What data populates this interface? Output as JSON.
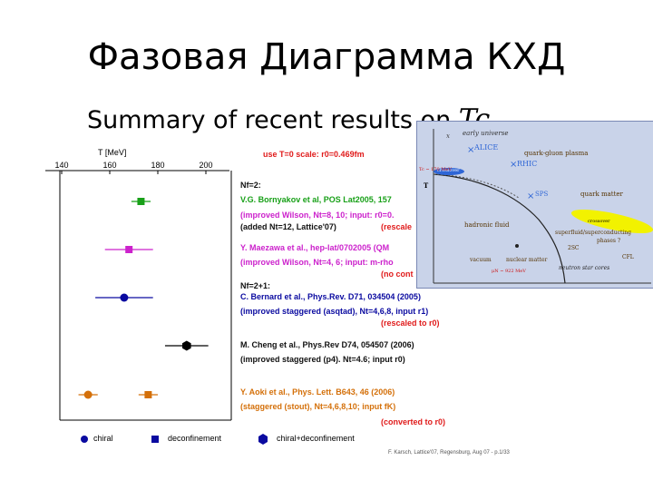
{
  "slide": {
    "title": "Фазовая Диаграмма КХД",
    "subtitle": "Summary of recent results on ",
    "subtitle_symbol": "Tc"
  },
  "chart_data": {
    "type": "scatter",
    "xlabel": "T [MeV]",
    "x_ticks": [
      140,
      160,
      180,
      200
    ],
    "xlim": [
      140,
      200
    ],
    "scale_note": "use T=0 scale: r0=0.469fm",
    "entries": [
      {
        "group": "Nf=2:",
        "lines": [
          {
            "text": "V.G. Bornyakov et al, POS Lat2005, 157",
            "color": "green"
          },
          {
            "text": "(improved Wilson, Nt=8, 10; input: r0=0.",
            "color": "magenta"
          },
          {
            "text": "(added Nt=12, Lattice'07)",
            "color": "black"
          },
          {
            "text": "(rescale",
            "color": "red"
          }
        ]
      },
      {
        "lines": [
          {
            "text": "Y. Maezawa et al., hep-lat/0702005 (QM",
            "color": "magenta"
          },
          {
            "text": "(improved Wilson, Nt=4, 6; input: m-rho",
            "color": "magenta"
          },
          {
            "text": "(no cont",
            "color": "red"
          }
        ]
      },
      {
        "group": "Nf=2+1:",
        "lines": [
          {
            "text": "C. Bernard et al., Phys.Rev. D71, 034504 (2005)",
            "color": "blue"
          },
          {
            "text": "(improved staggered (asqtad), Nt=4,6,8, input r1)",
            "color": "blue"
          },
          {
            "text": "(rescaled to r0)",
            "color": "red"
          }
        ]
      },
      {
        "lines": [
          {
            "text": "M. Cheng et al., Phys.Rev D74, 054507 (2006)",
            "color": "black"
          },
          {
            "text": "(improved staggered (p4). Nt=4.6; input r0)",
            "color": "black"
          }
        ]
      },
      {
        "lines": [
          {
            "text": "Y. Aoki et al., Phys. Lett. B643, 46 (2006)",
            "color": "orange"
          },
          {
            "text": "(staggered (stout), Nt=4,6,8,10; input fK)",
            "color": "orange"
          },
          {
            "text": "(converted to r0)",
            "color": "red"
          }
        ]
      }
    ],
    "points": [
      {
        "series": "Bornyakov",
        "type": "deconfinement",
        "x": 173,
        "xerr": 4,
        "color": "#18a018"
      },
      {
        "series": "Maezawa",
        "type": "deconfinement",
        "x": 168,
        "xerr": 10,
        "color": "#cc22cc"
      },
      {
        "series": "Bernard",
        "type": "chiral",
        "x": 166,
        "xerr": 12,
        "color": "#0a0aa0"
      },
      {
        "series": "Cheng",
        "type": "chiral+deconfinement",
        "x": 192,
        "xerr": 9,
        "color": "#000000"
      },
      {
        "series": "Aoki",
        "type": "chiral",
        "x": 151,
        "xerr": 4,
        "color": "#d4700a"
      },
      {
        "series": "Aoki",
        "type": "deconfinement",
        "x": 176,
        "xerr": 4,
        "color": "#d4700a"
      }
    ],
    "legend": [
      {
        "label": "chiral",
        "marker": "circle"
      },
      {
        "label": "deconfinement",
        "marker": "square"
      },
      {
        "label": "chiral+deconfinement",
        "marker": "hexagon"
      }
    ],
    "legend_position": "bottom"
  },
  "inset": {
    "labels": {
      "early_universe": "early universe",
      "alice": "ALICE",
      "qgp": "quark-gluon plasma",
      "rhic": "RHIC",
      "crossover": "crossover",
      "tc": "Tc ~ 170 MeV",
      "t_axis": "T",
      "sps": "SPS",
      "quark_matter": "quark matter",
      "hadronic_fluid": "hadronic fluid",
      "crossover2": "crossover",
      "superfluid": "superfluid/superconducting",
      "phases": "phases ?",
      "nuclear_matter": "nuclear matter",
      "vacuum": "vacuum",
      "csc": "2SC",
      "cfl": "CFL",
      "neutron": "neutron star cores",
      "mu": "μN ~ 922 MeV"
    }
  },
  "footer": "F. Karsch, Lattice'07, Regensburg, Aug 07 - p.1/33"
}
